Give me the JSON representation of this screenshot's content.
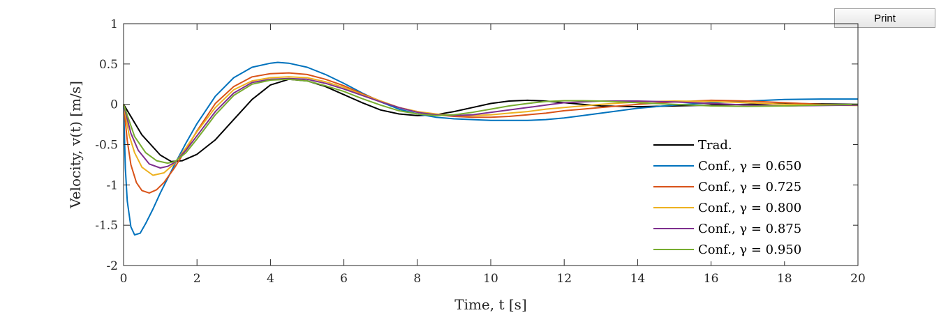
{
  "toolbar": {
    "print_label": "Print"
  },
  "chart_data": {
    "type": "line",
    "xlabel": "Time, t [s]",
    "ylabel": "Velocity, v(t) [m/s]",
    "xlim": [
      0,
      20
    ],
    "ylim": [
      -2,
      1
    ],
    "xticks": [
      0,
      2,
      4,
      6,
      8,
      10,
      12,
      14,
      16,
      18,
      20
    ],
    "yticks": [
      1,
      0.5,
      0,
      -0.5,
      -1,
      -1.5,
      -2
    ],
    "grid": false,
    "legend_position": "lower-right",
    "series": [
      {
        "name": "Trad.",
        "color": "#000000",
        "x": [
          0,
          0.5,
          1,
          1.3,
          1.6,
          2,
          2.5,
          3,
          3.5,
          4,
          4.5,
          5,
          5.5,
          6,
          6.5,
          7,
          7.5,
          8,
          8.5,
          9,
          9.5,
          10,
          10.5,
          11,
          11.5,
          12,
          12.5,
          13,
          14,
          15,
          16,
          17,
          18,
          19,
          20
        ],
        "y": [
          0,
          -0.38,
          -0.63,
          -0.71,
          -0.7,
          -0.62,
          -0.44,
          -0.19,
          0.06,
          0.24,
          0.31,
          0.29,
          0.22,
          0.12,
          0.02,
          -0.07,
          -0.12,
          -0.14,
          -0.13,
          -0.09,
          -0.04,
          0.01,
          0.04,
          0.05,
          0.04,
          0.02,
          0.0,
          -0.02,
          -0.03,
          -0.02,
          -0.01,
          0.0,
          0.01,
          0.005,
          0.0
        ]
      },
      {
        "name": "Conf., γ = 0.650",
        "color": "#0072BD",
        "x": [
          0,
          0.05,
          0.1,
          0.2,
          0.3,
          0.45,
          0.6,
          0.8,
          1,
          1.2,
          1.4,
          1.7,
          2,
          2.5,
          3,
          3.5,
          4,
          4.2,
          4.5,
          5,
          5.5,
          6,
          6.5,
          7,
          7.5,
          8,
          8.5,
          9,
          9.5,
          10,
          10.5,
          11,
          11.5,
          12,
          12.5,
          13,
          14,
          15,
          16,
          17,
          18,
          19,
          20
        ],
        "y": [
          0,
          -0.8,
          -1.2,
          -1.52,
          -1.62,
          -1.6,
          -1.48,
          -1.3,
          -1.1,
          -0.92,
          -0.74,
          -0.48,
          -0.24,
          0.1,
          0.33,
          0.46,
          0.51,
          0.52,
          0.51,
          0.46,
          0.37,
          0.26,
          0.14,
          0.03,
          -0.06,
          -0.12,
          -0.16,
          -0.18,
          -0.19,
          -0.2,
          -0.2,
          -0.2,
          -0.19,
          -0.17,
          -0.14,
          -0.11,
          -0.05,
          -0.01,
          0.02,
          0.04,
          0.06,
          0.065,
          0.065
        ]
      },
      {
        "name": "Conf., γ = 0.725",
        "color": "#D95319",
        "x": [
          0,
          0.1,
          0.2,
          0.35,
          0.5,
          0.7,
          0.9,
          1.1,
          1.4,
          1.7,
          2,
          2.5,
          3,
          3.5,
          4,
          4.5,
          5,
          5.5,
          6,
          6.5,
          7,
          7.5,
          8,
          8.5,
          9,
          9.5,
          10,
          10.5,
          11,
          11.5,
          12,
          12.5,
          13,
          14,
          15,
          16,
          17,
          18,
          19,
          20
        ],
        "y": [
          0,
          -0.45,
          -0.75,
          -0.97,
          -1.07,
          -1.1,
          -1.06,
          -0.97,
          -0.78,
          -0.56,
          -0.33,
          0.01,
          0.22,
          0.34,
          0.38,
          0.39,
          0.37,
          0.31,
          0.23,
          0.13,
          0.04,
          -0.04,
          -0.09,
          -0.13,
          -0.15,
          -0.16,
          -0.16,
          -0.15,
          -0.13,
          -0.11,
          -0.08,
          -0.06,
          -0.04,
          0.0,
          0.03,
          0.05,
          0.04,
          0.02,
          0.0,
          -0.01
        ]
      },
      {
        "name": "Conf., γ = 0.800",
        "color": "#EDB120",
        "x": [
          0,
          0.15,
          0.3,
          0.5,
          0.8,
          1.1,
          1.4,
          1.7,
          2,
          2.5,
          3,
          3.5,
          4,
          4.5,
          5,
          5.5,
          6,
          6.5,
          7,
          7.5,
          8,
          8.5,
          9,
          9.5,
          10,
          10.5,
          11,
          11.5,
          12,
          12.5,
          13,
          14,
          15,
          16,
          17,
          18,
          19,
          20
        ],
        "y": [
          0,
          -0.38,
          -0.6,
          -0.78,
          -0.88,
          -0.85,
          -0.73,
          -0.54,
          -0.34,
          -0.04,
          0.18,
          0.29,
          0.33,
          0.34,
          0.33,
          0.28,
          0.21,
          0.12,
          0.04,
          -0.04,
          -0.09,
          -0.12,
          -0.14,
          -0.14,
          -0.13,
          -0.11,
          -0.09,
          -0.06,
          -0.04,
          -0.02,
          0.0,
          0.03,
          0.04,
          0.035,
          0.02,
          0.0,
          -0.01,
          -0.015
        ]
      },
      {
        "name": "Conf., γ = 0.875",
        "color": "#7E2F8E",
        "x": [
          0,
          0.2,
          0.4,
          0.7,
          1,
          1.2,
          1.4,
          1.7,
          2,
          2.5,
          3,
          3.5,
          4,
          4.5,
          5,
          5.5,
          6,
          6.5,
          7,
          7.5,
          8,
          8.5,
          9,
          9.5,
          10,
          10.5,
          11,
          11.5,
          12,
          12.5,
          13,
          14,
          15,
          16,
          17,
          18,
          19,
          20
        ],
        "y": [
          0,
          -0.36,
          -0.57,
          -0.74,
          -0.79,
          -0.77,
          -0.72,
          -0.57,
          -0.39,
          -0.09,
          0.14,
          0.27,
          0.31,
          0.32,
          0.31,
          0.26,
          0.19,
          0.11,
          0.03,
          -0.04,
          -0.1,
          -0.13,
          -0.14,
          -0.13,
          -0.1,
          -0.07,
          -0.04,
          -0.01,
          0.02,
          0.03,
          0.04,
          0.04,
          0.03,
          0.01,
          -0.01,
          -0.02,
          -0.015,
          -0.01
        ]
      },
      {
        "name": "Conf., γ = 0.950",
        "color": "#77AC30",
        "x": [
          0,
          0.3,
          0.6,
          0.9,
          1.2,
          1.4,
          1.7,
          2,
          2.5,
          3,
          3.5,
          4,
          4.5,
          5,
          5.5,
          6,
          6.5,
          7,
          7.5,
          8,
          8.5,
          9,
          9.5,
          10,
          10.5,
          11,
          11.5,
          12,
          12.5,
          13,
          14,
          15,
          16,
          17,
          18,
          19,
          20
        ],
        "y": [
          0,
          -0.4,
          -0.6,
          -0.7,
          -0.73,
          -0.71,
          -0.6,
          -0.43,
          -0.13,
          0.11,
          0.25,
          0.3,
          0.31,
          0.29,
          0.23,
          0.16,
          0.07,
          -0.01,
          -0.08,
          -0.12,
          -0.14,
          -0.13,
          -0.1,
          -0.06,
          -0.02,
          0.01,
          0.035,
          0.045,
          0.045,
          0.04,
          0.02,
          0.0,
          -0.02,
          -0.025,
          -0.02,
          -0.01,
          0.0
        ]
      }
    ]
  }
}
